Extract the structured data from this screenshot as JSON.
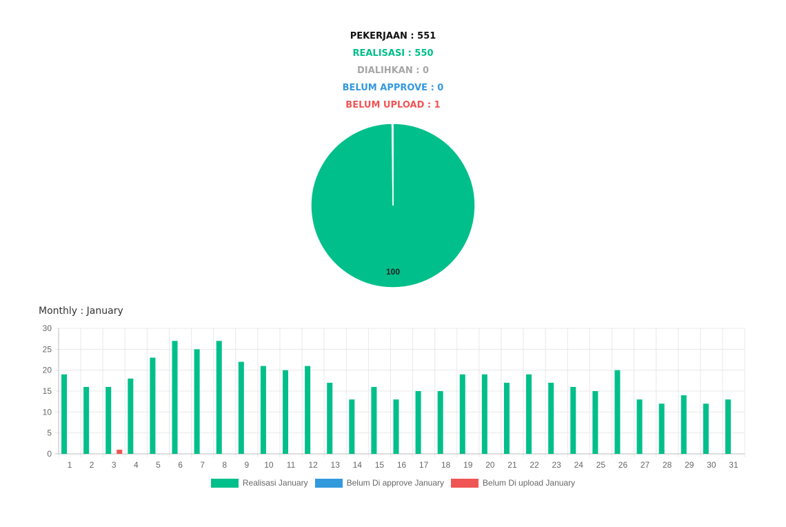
{
  "stats": {
    "pekerjaan": "PEKERJAAN : 551",
    "realisasi": "REALISASI : 550",
    "dialihkan": "DIALIHKAN : 0",
    "belum_approve": "BELUM APPROVE : 0",
    "belum_upload": "BELUM UPLOAD : 1"
  },
  "colors": {
    "realisasi": "#00bf8a",
    "dialihkan": "#a6a6a6",
    "approve": "#3399dd",
    "upload": "#f05555",
    "pekerjaan": "#111111"
  },
  "monthly_title": "Monthly : January",
  "legend": {
    "realisasi": "Realisasi January",
    "approve": "Belum Di approve January",
    "upload": "Belum Di upload January"
  },
  "chart_data": [
    {
      "type": "pie",
      "categories": [
        "Realisasi",
        "Belum Upload"
      ],
      "values": [
        550,
        1
      ],
      "data_labels": [
        "100"
      ]
    },
    {
      "type": "bar",
      "categories": [
        "1",
        "2",
        "3",
        "4",
        "5",
        "6",
        "7",
        "8",
        "9",
        "10",
        "11",
        "12",
        "13",
        "14",
        "15",
        "16",
        "17",
        "18",
        "19",
        "20",
        "21",
        "22",
        "23",
        "24",
        "25",
        "26",
        "27",
        "28",
        "29",
        "30",
        "31"
      ],
      "yticks": [
        "0",
        "5",
        "10",
        "15",
        "20",
        "25",
        "30"
      ],
      "ylim": [
        0,
        30
      ],
      "grid": true,
      "legend_placement": "bottom",
      "series": [
        {
          "name": "Realisasi January",
          "color": "#00bf8a",
          "values": [
            19,
            16,
            16,
            18,
            23,
            27,
            25,
            27,
            22,
            21,
            20,
            21,
            17,
            13,
            16,
            13,
            15,
            15,
            19,
            19,
            17,
            19,
            17,
            16,
            15,
            20,
            13,
            12,
            14,
            12,
            13
          ]
        },
        {
          "name": "Belum Di approve January",
          "color": "#3399dd",
          "values": [
            0,
            0,
            0,
            0,
            0,
            0,
            0,
            0,
            0,
            0,
            0,
            0,
            0,
            0,
            0,
            0,
            0,
            0,
            0,
            0,
            0,
            0,
            0,
            0,
            0,
            0,
            0,
            0,
            0,
            0,
            0
          ]
        },
        {
          "name": "Belum Di upload January",
          "color": "#f05555",
          "values": [
            0,
            0,
            1,
            0,
            0,
            0,
            0,
            0,
            0,
            0,
            0,
            0,
            0,
            0,
            0,
            0,
            0,
            0,
            0,
            0,
            0,
            0,
            0,
            0,
            0,
            0,
            0,
            0,
            0,
            0,
            0
          ]
        }
      ]
    }
  ]
}
